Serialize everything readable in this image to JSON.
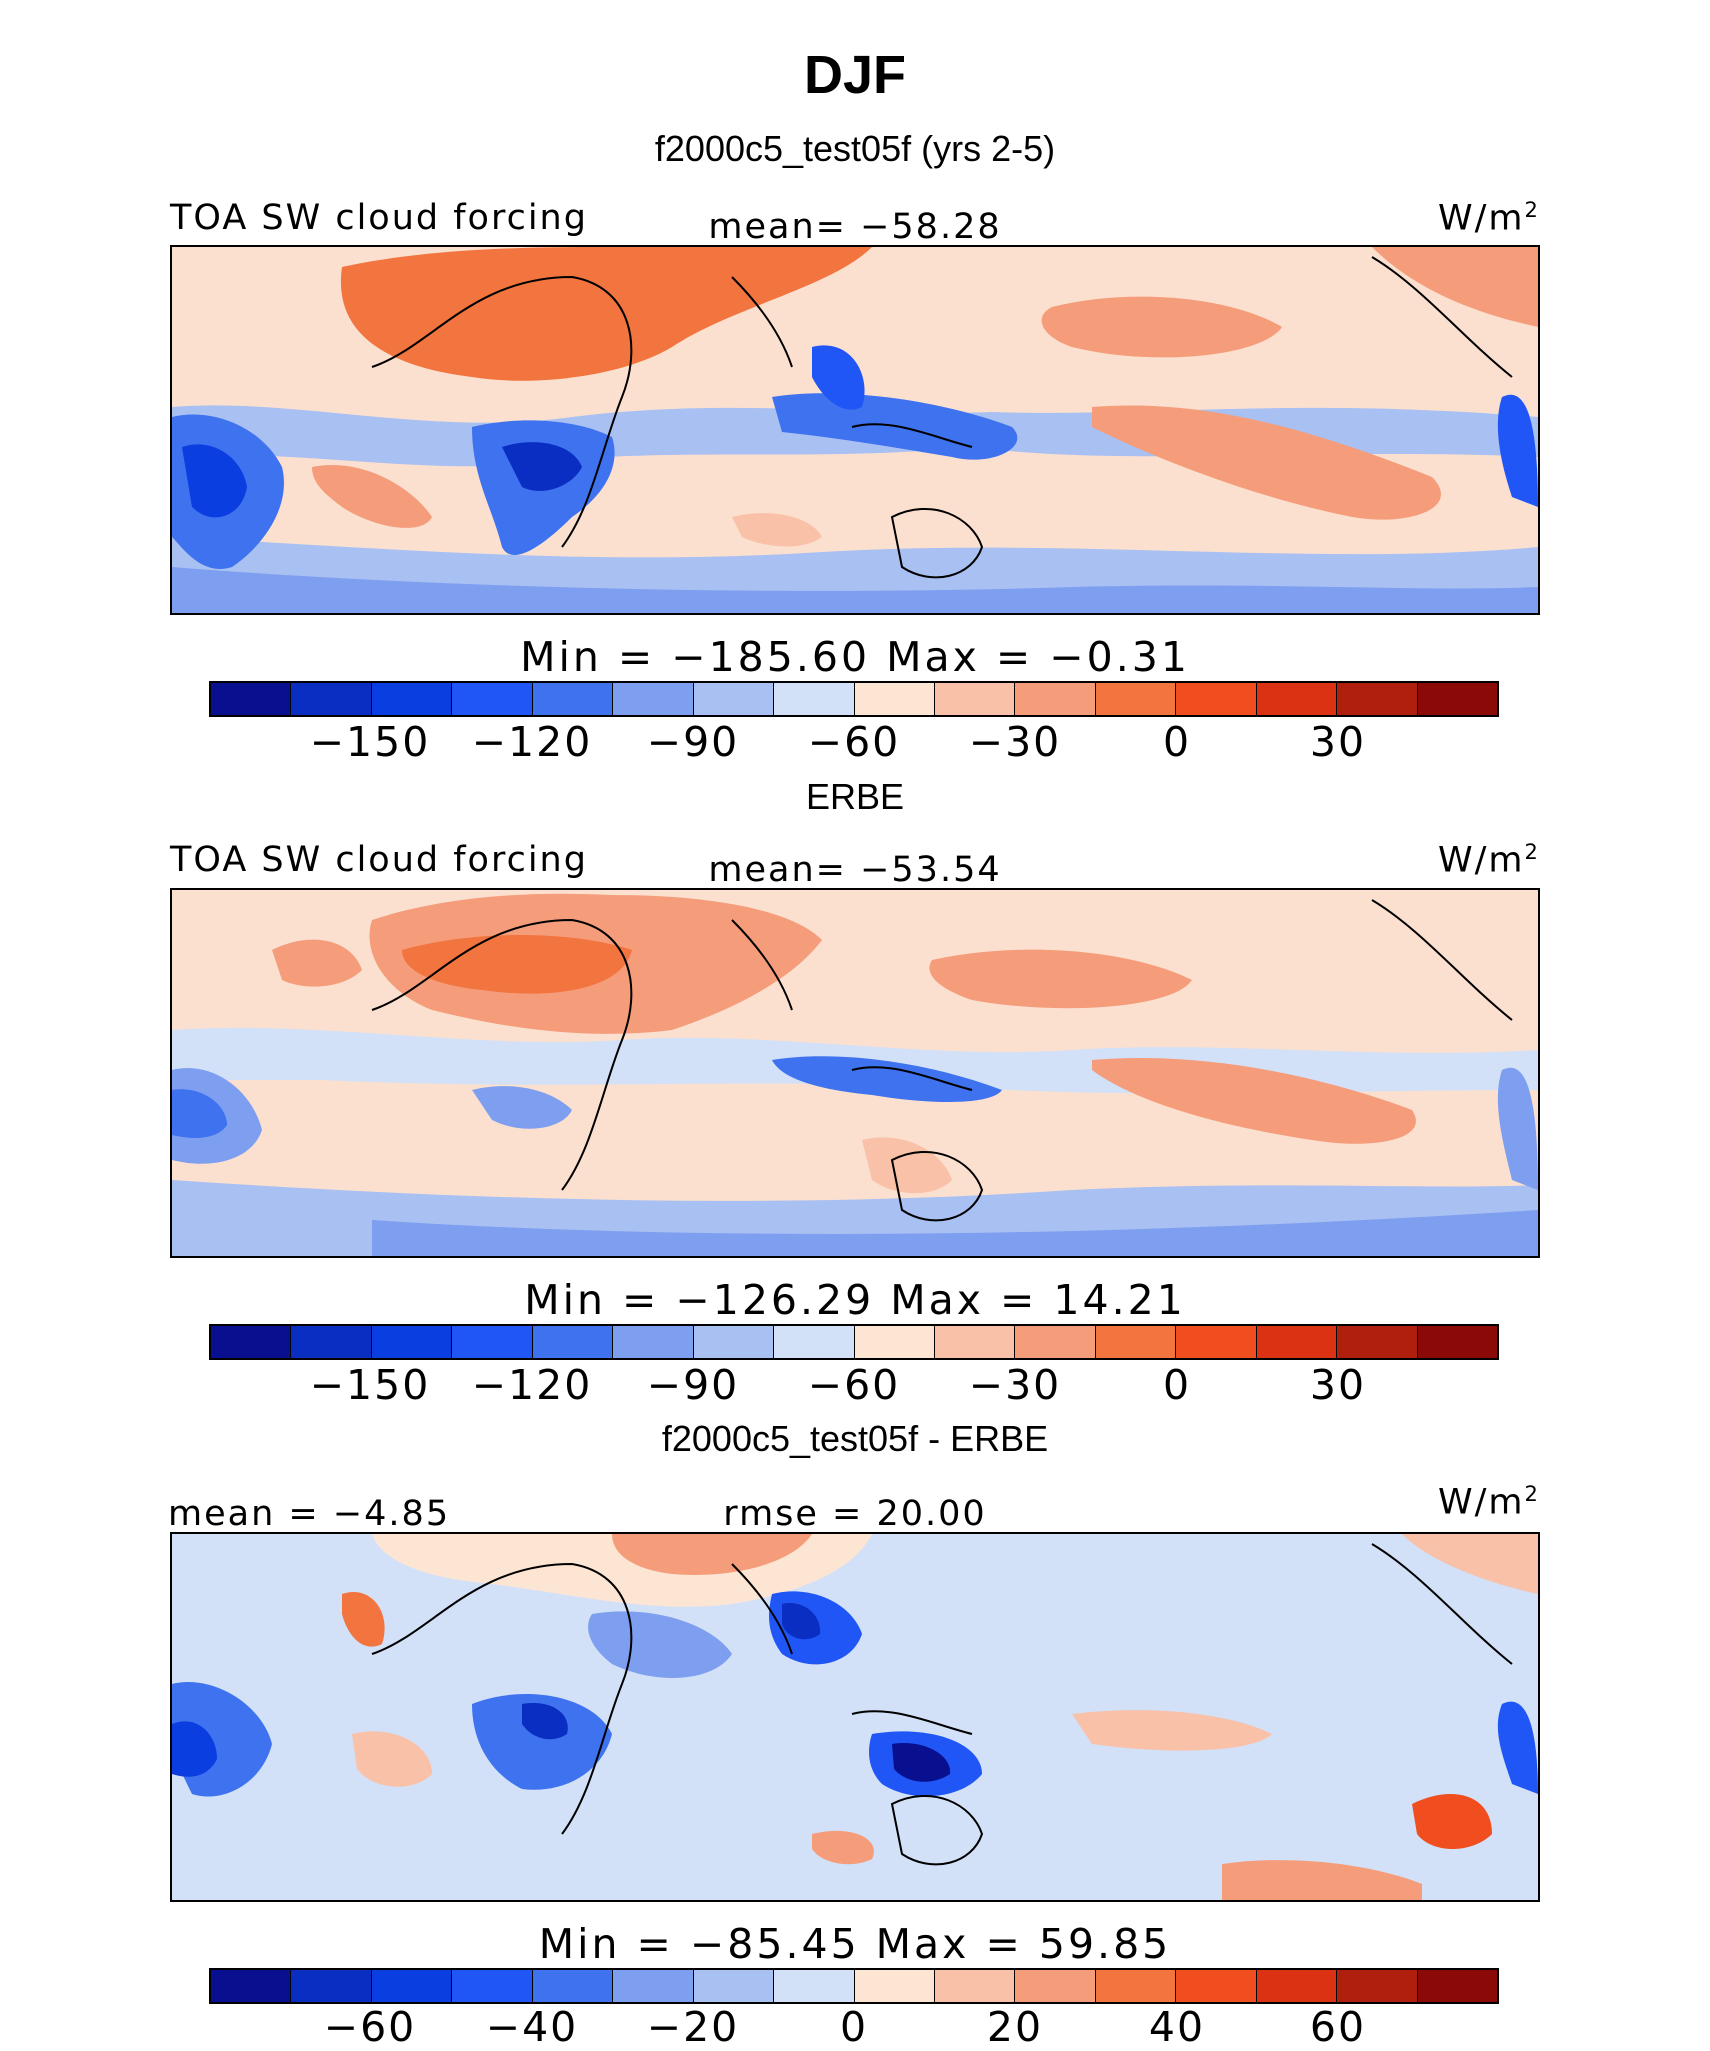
{
  "figure": {
    "title": "DJF"
  },
  "palette_full": [
    "#08108f",
    "#0a2ec2",
    "#0b3ee0",
    "#1f56f5",
    "#3e72ef",
    "#7e9ef0",
    "#a9c0f2",
    "#d2e1f8",
    "#fde5d4",
    "#f9c1a7",
    "#f59d7b",
    "#f2743f",
    "#f04e1f",
    "#db3213",
    "#b01e0e",
    "#8b0a08"
  ],
  "panels": [
    {
      "header": "f2000c5_test05f (yrs 2-5)",
      "left_label": "TOA SW cloud forcing",
      "center_label": "mean=  −58.28",
      "units": "W/m",
      "units_sup": "2",
      "stats": "Min  =  −185.60  Max  =    −0.31",
      "ticks": [
        "−150",
        "−120",
        "−90",
        "−60",
        "−30",
        "0",
        "30"
      ],
      "map_icon": "sw-cloud-forcing-model-map"
    },
    {
      "header": "ERBE",
      "left_label": "TOA SW cloud forcing",
      "center_label": "mean=  −53.54",
      "units": "W/m",
      "units_sup": "2",
      "stats": "Min  =  −126.29  Max  =    14.21",
      "ticks": [
        "−150",
        "−120",
        "−90",
        "−60",
        "−30",
        "0",
        "30"
      ],
      "map_icon": "sw-cloud-forcing-observed-map"
    },
    {
      "header": "f2000c5_test05f - ERBE",
      "left_label": "mean  =   −4.85",
      "center_label": "rmse  =   20.00",
      "units": "W/m",
      "units_sup": "2",
      "stats": "Min  =  −85.45  Max  =    59.85",
      "ticks": [
        "−60",
        "−40",
        "−20",
        "0",
        "20",
        "40",
        "60"
      ],
      "map_icon": "sw-cloud-forcing-difference-map"
    }
  ]
}
